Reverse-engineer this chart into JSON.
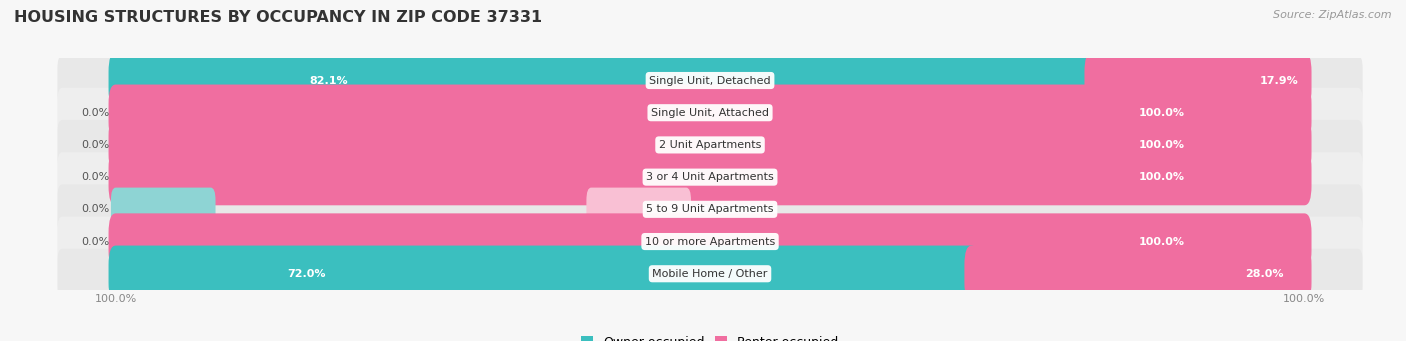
{
  "title": "HOUSING STRUCTURES BY OCCUPANCY IN ZIP CODE 37331",
  "source": "Source: ZipAtlas.com",
  "categories": [
    "Single Unit, Detached",
    "Single Unit, Attached",
    "2 Unit Apartments",
    "3 or 4 Unit Apartments",
    "5 to 9 Unit Apartments",
    "10 or more Apartments",
    "Mobile Home / Other"
  ],
  "owner_pct": [
    82.1,
    0.0,
    0.0,
    0.0,
    0.0,
    0.0,
    72.0
  ],
  "renter_pct": [
    17.9,
    100.0,
    100.0,
    100.0,
    0.0,
    100.0,
    28.0
  ],
  "owner_color": "#3bbfbf",
  "renter_color": "#f06ea0",
  "owner_light_color": "#8ed4d4",
  "renter_light_color": "#f9c0d4",
  "row_bg_even": "#f2f2f2",
  "row_bg_odd": "#e8e8e8",
  "bg_color": "#f7f7f7",
  "title_color": "#333333",
  "label_color": "#333333",
  "tick_color": "#888888",
  "source_color": "#999999",
  "title_fontsize": 11.5,
  "label_fontsize": 8.0,
  "pct_fontsize": 8.0,
  "tick_fontsize": 8.0,
  "source_fontsize": 8.0,
  "legend_fontsize": 9.0,
  "figsize": [
    14.06,
    3.41
  ],
  "dpi": 100
}
